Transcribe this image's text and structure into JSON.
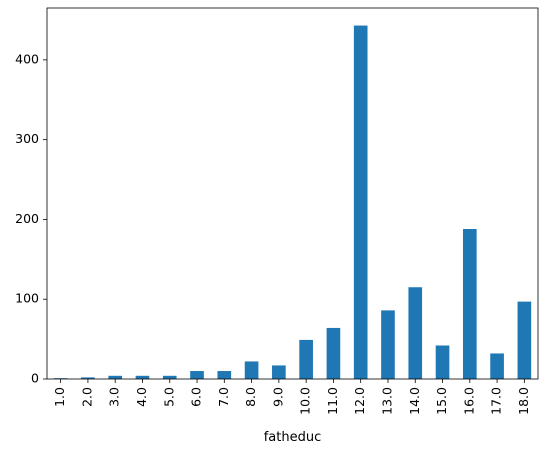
{
  "chart_data": {
    "type": "bar",
    "title": "",
    "xlabel": "fatheduc",
    "ylabel": "",
    "categories": [
      "1.0",
      "2.0",
      "3.0",
      "4.0",
      "5.0",
      "6.0",
      "7.0",
      "8.0",
      "9.0",
      "10.0",
      "11.0",
      "12.0",
      "13.0",
      "14.0",
      "15.0",
      "16.0",
      "17.0",
      "18.0"
    ],
    "values": [
      1,
      2,
      4,
      4,
      4,
      10,
      10,
      22,
      17,
      49,
      64,
      443,
      86,
      115,
      42,
      188,
      32,
      97
    ],
    "ylim": [
      0,
      465
    ],
    "yticks": [
      0,
      100,
      200,
      300,
      400
    ],
    "bar_color": "#1f77b4",
    "grid": false,
    "legend": "none"
  }
}
